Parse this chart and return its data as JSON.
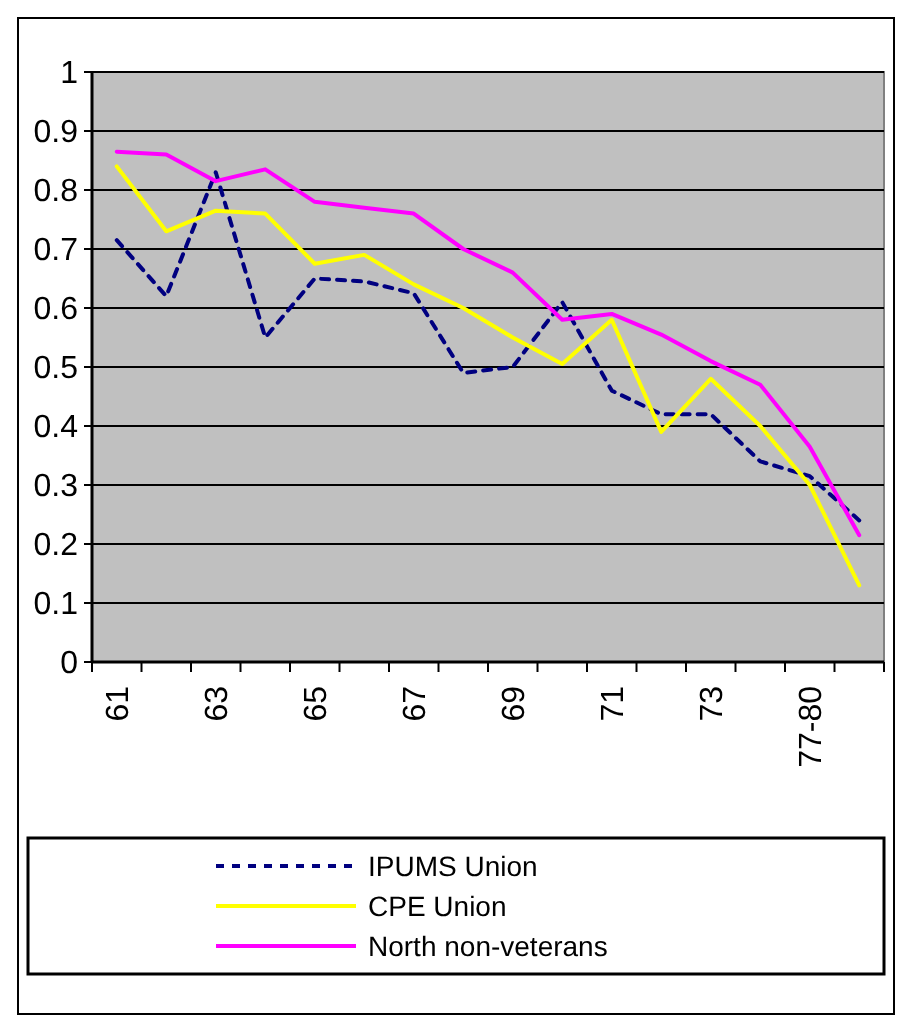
{
  "chart_data": {
    "type": "line",
    "categories": [
      "61",
      null,
      "63",
      null,
      "65",
      null,
      "67",
      null,
      "69",
      null,
      "71",
      null,
      "73",
      null,
      "77-80",
      null
    ],
    "series": [
      {
        "name": "IPUMS Union",
        "color": "#000080",
        "line_style": "dashed",
        "values": [
          0.715,
          0.62,
          0.83,
          0.55,
          0.65,
          0.645,
          0.625,
          0.49,
          0.5,
          0.61,
          0.46,
          0.42,
          0.42,
          0.34,
          0.315,
          0.24
        ]
      },
      {
        "name": "CPE Union",
        "color": "#ffff00",
        "line_style": "solid",
        "values": [
          0.84,
          0.73,
          0.765,
          0.76,
          0.675,
          0.69,
          0.64,
          0.6,
          0.55,
          0.505,
          0.58,
          0.39,
          0.48,
          0.4,
          0.3,
          0.13
        ]
      },
      {
        "name": "North non-veterans",
        "color": "#ff00ff",
        "line_style": "solid",
        "values": [
          0.865,
          0.86,
          0.815,
          0.835,
          0.78,
          0.77,
          0.76,
          0.7,
          0.66,
          0.58,
          0.59,
          0.555,
          0.51,
          0.47,
          0.365,
          0.215
        ]
      }
    ],
    "ylim": [
      0,
      1
    ],
    "yticks": [
      0,
      0.1,
      0.2,
      0.3,
      0.4,
      0.5,
      0.6,
      0.7,
      0.8,
      0.9,
      1
    ],
    "grid": "y",
    "legend": "bottom",
    "marker": "none"
  }
}
